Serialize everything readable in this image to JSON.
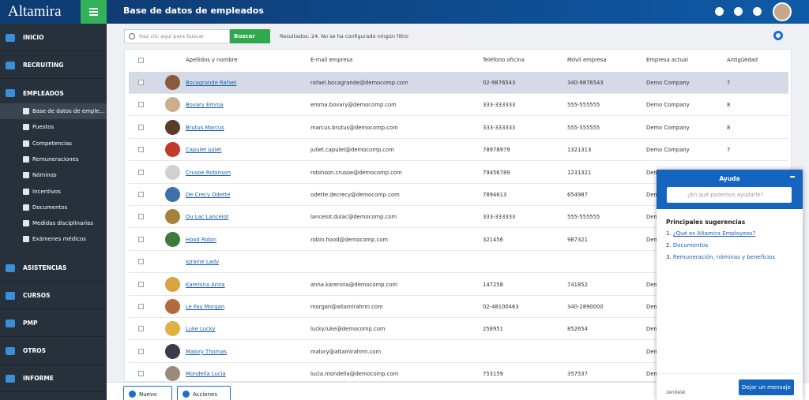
{
  "sidebar": {
    "logo": "Altamira",
    "sections": [
      {
        "label": "INICIO"
      },
      {
        "label": "RECRUITING"
      },
      {
        "label": "EMPLEADOS",
        "items": [
          "Base de datos de emple...",
          "Puestos",
          "Competencias",
          "Remuneraciones",
          "Nóminas",
          "Incentivos",
          "Documentos",
          "Medidas disciplinarias",
          "Exámenes médicos"
        ]
      },
      {
        "label": "ASISTENCIAS"
      },
      {
        "label": "CURSOS"
      },
      {
        "label": "PMP"
      },
      {
        "label": "OTROS"
      },
      {
        "label": "INFORME"
      }
    ]
  },
  "header": {
    "title": "Base de datos de empleados"
  },
  "search": {
    "placeholder": "Haz clic aquí para buscar",
    "button": "Buscar",
    "results": "Resultados: 24. No se ha configurado ningún filtro"
  },
  "table": {
    "columns": [
      "Apellidos y nombre",
      "E-mail empresa",
      "Teléfono oficina",
      "Móvil empresa",
      "Empresa actual",
      "Antigüedad"
    ],
    "rows": [
      {
        "name": "Bocagrande Rafael",
        "email": "rafael.bocagrande@democomp.com",
        "phone": "02-9876543",
        "mobile": "340-9876543",
        "company": "Demo Company",
        "seniority": "7"
      },
      {
        "name": "Bovary Emma",
        "email": "emma.bovary@democomp.com",
        "phone": "333-333333",
        "mobile": "555-555555",
        "company": "Demo Company",
        "seniority": "8"
      },
      {
        "name": "Brutus Marcus",
        "email": "marcus.brutus@democomp.com",
        "phone": "333-333333",
        "mobile": "555-555555",
        "company": "Demo Company",
        "seniority": "8"
      },
      {
        "name": "Capulet Juliet",
        "email": "juliet.capulet@democomp.com",
        "phone": "78978979",
        "mobile": "1321313",
        "company": "Demo Company",
        "seniority": "7"
      },
      {
        "name": "Crusoe Robinson",
        "email": "robinson.crusoe@democomp.com",
        "phone": "79456789",
        "mobile": "1231321",
        "company": "Demo Company"
      },
      {
        "name": "De Crecy Odette",
        "email": "odette.decrecy@democomp.com",
        "phone": "7894613",
        "mobile": "654987",
        "company": "Demo Company"
      },
      {
        "name": "Du Lac Lancelot",
        "email": "lancelot.dulac@democomp.com",
        "phone": "333-333333",
        "mobile": "555-555555",
        "company": "Demo Company"
      },
      {
        "name": "Hood Robin",
        "email": "robin.hood@democomp.com",
        "phone": "321456",
        "mobile": "987321",
        "company": "Demo Company"
      },
      {
        "name": "Igraine Lady"
      },
      {
        "name": "Karenina Anna",
        "email": "anna.karenina@democomp.com",
        "phone": "147258",
        "mobile": "741852",
        "company": "Demo Company"
      },
      {
        "name": "Le Fay Morgan",
        "email": "morgan@altamirahrm.com",
        "phone": "02-48100463",
        "mobile": "340-2890000",
        "company": "Demo Company"
      },
      {
        "name": "Luke Lucky",
        "email": "lucky.luke@democomp.com",
        "phone": "258951",
        "mobile": "852654",
        "company": "Demo Company"
      },
      {
        "name": "Malory Thomas",
        "email": "malory@altamirahrm.com",
        "company": "Demo Company"
      },
      {
        "name": "Mondella Lucia",
        "email": "lucia.mondella@democomp.com",
        "phone": "753159",
        "mobile": "357537",
        "company": "Demo Company"
      }
    ]
  },
  "footer": {
    "buttons": [
      "Nuevo",
      "Acciones"
    ]
  },
  "help": {
    "title": "Ayuda",
    "placeholder": "¿En qué podemos ayudarle?",
    "heading": "Principales sugerencias",
    "links": [
      {
        "num": "1.",
        "text": "¿Qué es Altamira Employees?"
      },
      {
        "num": "2.",
        "text": "Documentos"
      },
      {
        "num": "3.",
        "text": "Remuneración, nóminas y beneficios"
      }
    ],
    "brand": "zendesk",
    "button": "Dejar un mensaje"
  }
}
